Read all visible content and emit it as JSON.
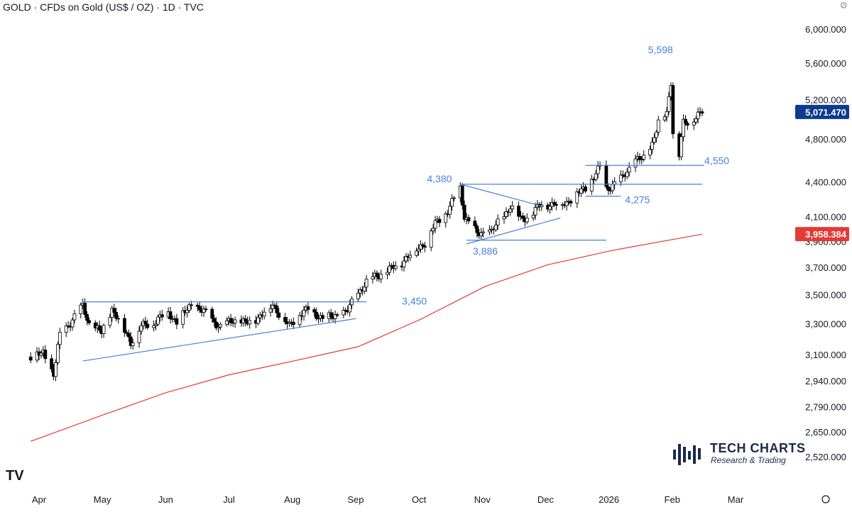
{
  "header": {
    "title": "GOLD · CFDs on Gold (US$ / OZ) · 1D · TVC",
    "settings_icon": "gear-icon"
  },
  "brand": {
    "name": "TECH CHARTS",
    "tagline": "Research & Trading",
    "color": "#1b2a4a"
  },
  "colors": {
    "up": "#ffffff",
    "down": "#000000",
    "trendline": "#4a7fe0",
    "ma": "#e53935",
    "price_tag": "#0d3b8e",
    "ma_tag": "#e53935"
  },
  "chart_data": {
    "type": "candlestick",
    "title": "GOLD · CFDs on Gold (US$ / OZ) · 1D · TVC",
    "x_tick_labels": [
      "Apr",
      "May",
      "Jun",
      "Jul",
      "Aug",
      "Sep",
      "Oct",
      "Nov",
      "Dec",
      "2026",
      "Feb",
      "Mar"
    ],
    "y_scale": "log",
    "y_tick_labels": [
      "6,000.000",
      "5,600.000",
      "5,200.000",
      "4,800.000",
      "4,400.000",
      "4,100.000",
      "3,900.000",
      "3,700.000",
      "3,500.000",
      "3,300.000",
      "3,100.000",
      "2,940.000",
      "2,790.000",
      "2,650.000",
      "2,520.000"
    ],
    "y_ticks": [
      6000,
      5600,
      5200,
      4800,
      4400,
      4100,
      3900,
      3700,
      3500,
      3300,
      3100,
      2940,
      2790,
      2650,
      2520
    ],
    "current_price": {
      "label": "5,071.470",
      "value": 5071.47
    },
    "ma_value": {
      "label": "3,958.384",
      "value": 3958.384
    },
    "annotations": [
      {
        "text": "5,598",
        "value": 5598
      },
      {
        "text": "4,550",
        "value": 4550
      },
      {
        "text": "4,380",
        "value": 4380
      },
      {
        "text": "4,275",
        "value": 4275
      },
      {
        "text": "3,886",
        "value": 3886
      },
      {
        "text": "3,450",
        "value": 3450
      }
    ],
    "price_path": [
      [
        "2025-03-28",
        3085
      ],
      [
        "2025-04-03",
        3110
      ],
      [
        "2025-04-08",
        2975
      ],
      [
        "2025-04-11",
        3220
      ],
      [
        "2025-04-17",
        3330
      ],
      [
        "2025-04-22",
        3420
      ],
      [
        "2025-04-25",
        3300
      ],
      [
        "2025-05-01",
        3240
      ],
      [
        "2025-05-06",
        3400
      ],
      [
        "2025-05-09",
        3330
      ],
      [
        "2025-05-15",
        3180
      ],
      [
        "2025-05-20",
        3280
      ],
      [
        "2025-05-26",
        3310
      ],
      [
        "2025-06-02",
        3380
      ],
      [
        "2025-06-06",
        3310
      ],
      [
        "2025-06-13",
        3430
      ],
      [
        "2025-06-20",
        3370
      ],
      [
        "2025-06-27",
        3275
      ],
      [
        "2025-07-03",
        3330
      ],
      [
        "2025-07-09",
        3300
      ],
      [
        "2025-07-15",
        3340
      ],
      [
        "2025-07-22",
        3430
      ],
      [
        "2025-07-30",
        3280
      ],
      [
        "2025-08-04",
        3370
      ],
      [
        "2025-08-08",
        3395
      ],
      [
        "2025-08-15",
        3340
      ],
      [
        "2025-08-20",
        3345
      ],
      [
        "2025-08-27",
        3390
      ],
      [
        "2025-09-02",
        3535
      ],
      [
        "2025-09-05",
        3590
      ],
      [
        "2025-09-10",
        3640
      ],
      [
        "2025-09-16",
        3680
      ],
      [
        "2025-09-22",
        3740
      ],
      [
        "2025-09-29",
        3840
      ],
      [
        "2025-10-03",
        3890
      ],
      [
        "2025-10-08",
        4040
      ],
      [
        "2025-10-14",
        4150
      ],
      [
        "2025-10-17",
        4250
      ],
      [
        "2025-10-20",
        4350
      ],
      [
        "2025-10-22",
        4110
      ],
      [
        "2025-10-28",
        3960
      ],
      [
        "2025-11-04",
        3980
      ],
      [
        "2025-11-10",
        4110
      ],
      [
        "2025-11-13",
        4190
      ],
      [
        "2025-11-18",
        4080
      ],
      [
        "2025-11-24",
        4130
      ],
      [
        "2025-11-28",
        4210
      ],
      [
        "2025-12-03",
        4200
      ],
      [
        "2025-12-10",
        4220
      ],
      [
        "2025-12-15",
        4300
      ],
      [
        "2025-12-19",
        4340
      ],
      [
        "2025-12-26",
        4530
      ],
      [
        "2025-12-29",
        4340
      ],
      [
        "2026-01-05",
        4420
      ],
      [
        "2026-01-12",
        4600
      ],
      [
        "2026-01-16",
        4610
      ],
      [
        "2026-01-20",
        4760
      ],
      [
        "2026-01-23",
        4970
      ],
      [
        "2026-01-27",
        5050
      ],
      [
        "2026-01-29",
        5400
      ],
      [
        "2026-01-30",
        4880
      ],
      [
        "2026-02-02",
        4650
      ],
      [
        "2026-02-04",
        4950
      ],
      [
        "2026-02-06",
        4960
      ],
      [
        "2026-02-10",
        5030
      ],
      [
        "2026-02-13",
        5071
      ]
    ],
    "ma_path": [
      [
        "2025-03-28",
        2600
      ],
      [
        "2025-05-01",
        2740
      ],
      [
        "2025-06-01",
        2870
      ],
      [
        "2025-07-01",
        2975
      ],
      [
        "2025-08-01",
        3060
      ],
      [
        "2025-09-01",
        3150
      ],
      [
        "2025-10-01",
        3330
      ],
      [
        "2025-11-01",
        3560
      ],
      [
        "2025-12-01",
        3720
      ],
      [
        "2026-01-01",
        3830
      ],
      [
        "2026-02-13",
        3958
      ]
    ],
    "lines": [
      {
        "from": [
          "2025-04-22",
          3450
        ],
        "to": [
          "2025-09-05",
          3450
        ]
      },
      {
        "from": [
          "2025-04-22",
          3060
        ],
        "to": [
          "2025-08-31",
          3335
        ]
      },
      {
        "from": [
          "2025-10-20",
          4380
        ],
        "to": [
          "2026-02-13",
          4380
        ]
      },
      {
        "from": [
          "2025-10-20",
          4380
        ],
        "to": [
          "2025-11-28",
          4190
        ]
      },
      {
        "from": [
          "2025-10-23",
          3880
        ],
        "to": [
          "2025-12-07",
          4090
        ]
      },
      {
        "from": [
          "2025-10-23",
          3910
        ],
        "to": [
          "2025-12-29",
          3910
        ]
      },
      {
        "from": [
          "2025-12-19",
          4550
        ],
        "to": [
          "2026-02-14",
          4550
        ]
      },
      {
        "from": [
          "2025-12-19",
          4275
        ],
        "to": [
          "2026-01-05",
          4275
        ]
      }
    ]
  }
}
